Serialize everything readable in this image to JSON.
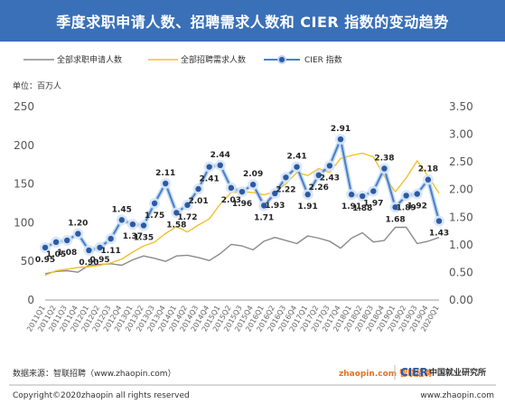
{
  "title": "季度求职申请人数、招聘需求人数和 CIER 指数的变动趋势",
  "unit_label": "单位：百万人",
  "legend": [
    {
      "label": "全部求职申请人数",
      "color": "#8a8a8a",
      "style": "line"
    },
    {
      "label": "全部招聘需求人数",
      "color": "#f2c12e",
      "style": "line"
    },
    {
      "label": "CIER 指数",
      "color": "#4a7fc8",
      "style": "marker-line"
    }
  ],
  "footer": {
    "source": "数据来源：智联招聘（www.zhaopin.com）",
    "copyright": "Copyright©2020zhaopin all rights reserved",
    "website": "www.zhaopin.com",
    "logo_zhaopin": "zhaopin.com 智联招聘",
    "logo_cier": "CIER",
    "logo_cier_cn": "中国就业研究所"
  },
  "chart_data": {
    "type": "line",
    "categories": [
      "2011Q1",
      "2011Q2",
      "2011Q3",
      "2011Q4",
      "2012Q1",
      "2012Q2",
      "2012Q3",
      "2012Q4",
      "2013Q1",
      "2013Q2",
      "2013Q3",
      "2013Q4",
      "2014Q1",
      "2014Q2",
      "2014Q3",
      "2014Q4",
      "2015Q1",
      "2015Q2",
      "2015Q3",
      "2015Q4",
      "2016Q1",
      "2016Q2",
      "2016Q3",
      "2016Q4",
      "2017Q1",
      "2017Q2",
      "2017Q3",
      "2017Q4",
      "2018Q1",
      "2018Q2",
      "2018Q3",
      "2018Q4",
      "2019Q1",
      "2019Q2",
      "2019Q3",
      "2019Q4",
      "2020Q1"
    ],
    "y_left": {
      "min": 0,
      "max": 250,
      "ticks": [
        0,
        50,
        100,
        150,
        200,
        250
      ]
    },
    "y_right": {
      "min": 0,
      "max": 3.5,
      "ticks": [
        "0.00",
        "0.50",
        "1.00",
        "1.50",
        "2.00",
        "2.50",
        "3.00",
        "3.50"
      ]
    },
    "series": [
      {
        "name": "全部求职申请人数",
        "axis": "left",
        "color": "#8a8a8a",
        "values": [
          34,
          37,
          38,
          36,
          45,
          46,
          47,
          45,
          52,
          57,
          54,
          50,
          57,
          58,
          55,
          51,
          60,
          72,
          70,
          65,
          76,
          81,
          77,
          73,
          83,
          80,
          76,
          67,
          80,
          87,
          75,
          77,
          94,
          94,
          73,
          76,
          81
        ]
      },
      {
        "name": "全部招聘需求人数",
        "axis": "left",
        "color": "#f2c12e",
        "values": [
          32,
          38,
          40,
          42,
          43,
          45,
          48,
          53,
          62,
          70,
          75,
          86,
          95,
          88,
          97,
          105,
          124,
          139,
          140,
          139,
          136,
          140,
          150,
          165,
          161,
          170,
          165,
          183,
          187,
          190,
          185,
          160,
          140,
          158,
          180,
          160,
          138
        ]
      },
      {
        "name": "CIER 指数",
        "axis": "right",
        "color": "#4a7fc8",
        "values": [
          0.95,
          1.05,
          1.08,
          1.2,
          0.9,
          0.95,
          1.11,
          1.45,
          1.37,
          1.35,
          1.75,
          2.11,
          1.58,
          1.72,
          2.01,
          2.41,
          2.44,
          2.03,
          1.96,
          2.09,
          1.71,
          1.93,
          2.22,
          2.41,
          1.91,
          2.26,
          2.43,
          2.91,
          1.91,
          1.88,
          1.97,
          2.38,
          1.68,
          1.89,
          1.92,
          2.18,
          1.43
        ],
        "labeled": {
          "0": "0.95",
          "1": "1.05",
          "2": "1.08",
          "3": "1.20",
          "4": "0.90",
          "5": "0.95",
          "6": "1.11",
          "7": "1.45",
          "8": "1.37",
          "9": "1.35",
          "10": "1.75",
          "11": "2.11",
          "12": "1.58",
          "13": "1.72",
          "14": "2.01",
          "15": "2.41",
          "16": "2.44",
          "17": "2.03",
          "18": "1.96",
          "19": "2.09",
          "20": "1.71",
          "21": "1.93",
          "22": "2.22",
          "23": "2.41",
          "24": "1.91",
          "25": "2.26",
          "26": "2.43",
          "27": "2.91",
          "28": "1.91",
          "29": "1.88",
          "30": "1.97",
          "31": "2.38",
          "32": "1.68",
          "33": "1.89",
          "34": "1.92",
          "35": "2.18",
          "36": "1.43"
        }
      }
    ]
  }
}
